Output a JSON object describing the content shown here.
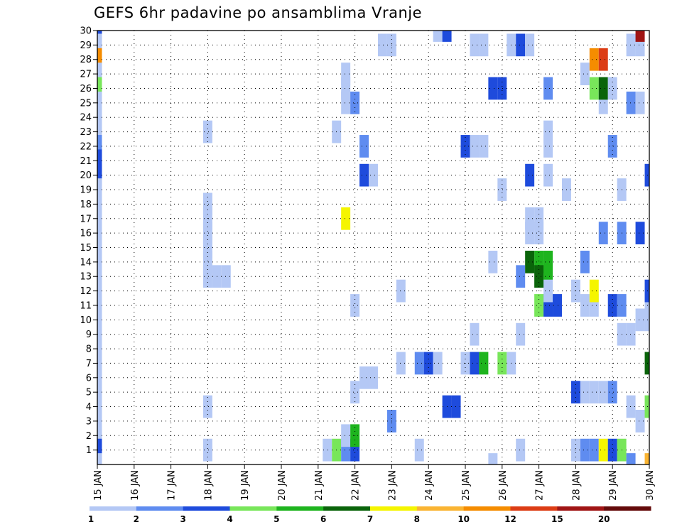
{
  "chart_data": {
    "type": "heatmap",
    "title": "GEFS 6hr padavine po ansamblima Vranje",
    "x_tick_labels": [
      "15 JAN",
      "16 JAN",
      "17 JAN",
      "18 JAN",
      "19 JAN",
      "20 JAN",
      "21 JAN",
      "22 JAN",
      "23 JAN",
      "24 JAN",
      "25 JAN",
      "26 JAN",
      "27 JAN",
      "28 JAN",
      "29 JAN",
      "30 JAN"
    ],
    "y_tick_labels": [
      "1",
      "2",
      "3",
      "4",
      "5",
      "6",
      "7",
      "8",
      "9",
      "10",
      "11",
      "12",
      "13",
      "14",
      "15",
      "16",
      "17",
      "18",
      "19",
      "20",
      "21",
      "22",
      "23",
      "24",
      "25",
      "26",
      "27",
      "28",
      "29",
      "30"
    ],
    "x_unit": "6-hour steps from 15 JAN 00z",
    "xlim": [
      0,
      60
    ],
    "ylim": [
      0,
      30
    ],
    "grid": true,
    "colorbar": {
      "labels": [
        "1",
        "2",
        "3",
        "4",
        "5",
        "6",
        "7",
        "8",
        "10",
        "12",
        "15",
        "20"
      ],
      "colors": [
        "#b4c8f5",
        "#5f8cf0",
        "#1e4bdc",
        "#78e65a",
        "#1eb41e",
        "#0a640a",
        "#f5f500",
        "#fab432",
        "#f58c00",
        "#dc3c14",
        "#a01414",
        "#640a0a"
      ]
    },
    "cells": [
      [
        0,
        30,
        3
      ],
      [
        0,
        29,
        1
      ],
      [
        0,
        28,
        9
      ],
      [
        0,
        27,
        1
      ],
      [
        0,
        26,
        4
      ],
      [
        0,
        25,
        1
      ],
      [
        0,
        24,
        1
      ],
      [
        0,
        23,
        1
      ],
      [
        0,
        22,
        2
      ],
      [
        0,
        21,
        3
      ],
      [
        0,
        20,
        3
      ],
      [
        0,
        19,
        1
      ],
      [
        0,
        18,
        1
      ],
      [
        0,
        17,
        1
      ],
      [
        0,
        16,
        1
      ],
      [
        0,
        15,
        1
      ],
      [
        0,
        14,
        1
      ],
      [
        0,
        13,
        1
      ],
      [
        0,
        12,
        1
      ],
      [
        0,
        11,
        1
      ],
      [
        0,
        10,
        1
      ],
      [
        0,
        9,
        1
      ],
      [
        0,
        8,
        1
      ],
      [
        0,
        7,
        1
      ],
      [
        0,
        6,
        1
      ],
      [
        0,
        5,
        1
      ],
      [
        0,
        4,
        1
      ],
      [
        0,
        3,
        1
      ],
      [
        0,
        2,
        1
      ],
      [
        0,
        1,
        3
      ],
      [
        0,
        0,
        1
      ],
      [
        12,
        1,
        1
      ],
      [
        12,
        4,
        1
      ],
      [
        12,
        13,
        1
      ],
      [
        12,
        14,
        1
      ],
      [
        12,
        15,
        1
      ],
      [
        12,
        16,
        1
      ],
      [
        12,
        17,
        1
      ],
      [
        12,
        18,
        1
      ],
      [
        12,
        23,
        1
      ],
      [
        13,
        13,
        1
      ],
      [
        14,
        13,
        1
      ],
      [
        25,
        1,
        1
      ],
      [
        26,
        1,
        4
      ],
      [
        26,
        23,
        1
      ],
      [
        27,
        1,
        2
      ],
      [
        27,
        2,
        1
      ],
      [
        27,
        17,
        7
      ],
      [
        27,
        25,
        1
      ],
      [
        27,
        26,
        1
      ],
      [
        27,
        27,
        1
      ],
      [
        28,
        1,
        3
      ],
      [
        28,
        2,
        5
      ],
      [
        28,
        5,
        1
      ],
      [
        28,
        11,
        1
      ],
      [
        28,
        25,
        2
      ],
      [
        29,
        6,
        1
      ],
      [
        29,
        20,
        3
      ],
      [
        29,
        22,
        2
      ],
      [
        30,
        6,
        1
      ],
      [
        30,
        20,
        1
      ],
      [
        31,
        29,
        1
      ],
      [
        32,
        3,
        2
      ],
      [
        32,
        29,
        1
      ],
      [
        33,
        7,
        1
      ],
      [
        33,
        12,
        1
      ],
      [
        35,
        7,
        2
      ],
      [
        35,
        1,
        1
      ],
      [
        36,
        7,
        3
      ],
      [
        37,
        7,
        1
      ],
      [
        37,
        30,
        1
      ],
      [
        38,
        30,
        3
      ],
      [
        38,
        4,
        3
      ],
      [
        39,
        4,
        3
      ],
      [
        40,
        7,
        1
      ],
      [
        40,
        22,
        3
      ],
      [
        41,
        7,
        3
      ],
      [
        41,
        9,
        1
      ],
      [
        41,
        22,
        1
      ],
      [
        41,
        29,
        1
      ],
      [
        42,
        7,
        5
      ],
      [
        42,
        22,
        1
      ],
      [
        42,
        29,
        1
      ],
      [
        43,
        14,
        1
      ],
      [
        43,
        26,
        3
      ],
      [
        43,
        0,
        1
      ],
      [
        44,
        7,
        4
      ],
      [
        44,
        19,
        1
      ],
      [
        44,
        26,
        3
      ],
      [
        45,
        7,
        1
      ],
      [
        45,
        29,
        1
      ],
      [
        46,
        1,
        1
      ],
      [
        46,
        9,
        1
      ],
      [
        46,
        13,
        2
      ],
      [
        46,
        29,
        3
      ],
      [
        47,
        14,
        6
      ],
      [
        47,
        29,
        1
      ],
      [
        47,
        16,
        1
      ],
      [
        47,
        17,
        1
      ],
      [
        47,
        20,
        3
      ],
      [
        48,
        14,
        5
      ],
      [
        48,
        13,
        6
      ],
      [
        48,
        11,
        4
      ],
      [
        48,
        16,
        1
      ],
      [
        48,
        17,
        1
      ],
      [
        49,
        14,
        5
      ],
      [
        49,
        13,
        5
      ],
      [
        49,
        11,
        3
      ],
      [
        49,
        12,
        1
      ],
      [
        49,
        20,
        1
      ],
      [
        49,
        22,
        1
      ],
      [
        49,
        23,
        1
      ],
      [
        49,
        26,
        2
      ],
      [
        50,
        11,
        3
      ],
      [
        51,
        19,
        1
      ],
      [
        52,
        1,
        1
      ],
      [
        52,
        5,
        3
      ],
      [
        52,
        12,
        1
      ],
      [
        53,
        1,
        2
      ],
      [
        53,
        5,
        1
      ],
      [
        53,
        11,
        1
      ],
      [
        53,
        14,
        2
      ],
      [
        53,
        27,
        1
      ],
      [
        54,
        1,
        2
      ],
      [
        54,
        5,
        1
      ],
      [
        54,
        11,
        1
      ],
      [
        54,
        12,
        7
      ],
      [
        54,
        26,
        4
      ],
      [
        54,
        28,
        9
      ],
      [
        55,
        1,
        7
      ],
      [
        55,
        5,
        1
      ],
      [
        55,
        16,
        2
      ],
      [
        55,
        25,
        1
      ],
      [
        55,
        26,
        6
      ],
      [
        55,
        28,
        10
      ],
      [
        56,
        1,
        3
      ],
      [
        56,
        5,
        2
      ],
      [
        56,
        11,
        3
      ],
      [
        56,
        22,
        2
      ],
      [
        56,
        26,
        1
      ],
      [
        57,
        1,
        4
      ],
      [
        57,
        9,
        1
      ],
      [
        57,
        11,
        2
      ],
      [
        57,
        16,
        2
      ],
      [
        57,
        19,
        1
      ],
      [
        58,
        9,
        1
      ],
      [
        58,
        4,
        1
      ],
      [
        58,
        25,
        2
      ],
      [
        58,
        29,
        1
      ],
      [
        58,
        0,
        2
      ],
      [
        59,
        10,
        1
      ],
      [
        59,
        3,
        1
      ],
      [
        59,
        25,
        1
      ],
      [
        59,
        29,
        1
      ],
      [
        59,
        30,
        11
      ],
      [
        59,
        16,
        3
      ],
      [
        60,
        10,
        1
      ],
      [
        60,
        7,
        6
      ],
      [
        60,
        11,
        1
      ],
      [
        60,
        12,
        3
      ],
      [
        60,
        20,
        3
      ],
      [
        60,
        4,
        4
      ],
      [
        60,
        0,
        8
      ]
    ]
  }
}
